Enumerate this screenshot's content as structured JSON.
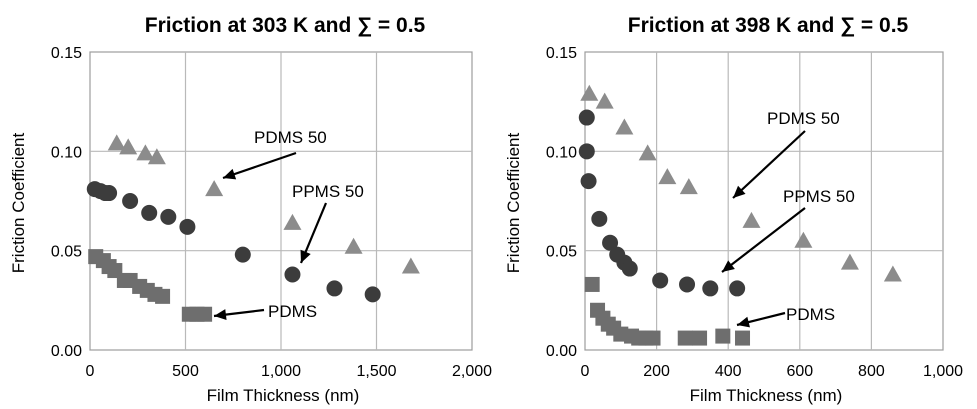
{
  "chart_data": [
    {
      "type": "scatter",
      "title": "Friction at 303 K and ∑ = 0.5",
      "xlabel": "Film Thickness (nm)",
      "ylabel": "Friction Coefficient",
      "xlim": [
        0,
        2000
      ],
      "ylim": [
        0,
        0.15
      ],
      "xticks": [
        "0",
        "500",
        "1,000",
        "1,500",
        "2,000"
      ],
      "yticks": [
        "0.00",
        "0.05",
        "0.10",
        "0.15"
      ],
      "grid": true,
      "series": [
        {
          "name": "PDMS 50",
          "marker": "triangle",
          "color": "#8c8c8c",
          "points": [
            [
              140,
              0.104
            ],
            [
              200,
              0.102
            ],
            [
              290,
              0.099
            ],
            [
              350,
              0.097
            ],
            [
              650,
              0.081
            ],
            [
              1060,
              0.064
            ],
            [
              1380,
              0.052
            ],
            [
              1680,
              0.042
            ]
          ]
        },
        {
          "name": "PPMS 50",
          "marker": "circle",
          "color": "#3c3c3c",
          "points": [
            [
              25,
              0.081
            ],
            [
              55,
              0.08
            ],
            [
              80,
              0.079
            ],
            [
              100,
              0.079
            ],
            [
              210,
              0.075
            ],
            [
              310,
              0.069
            ],
            [
              410,
              0.067
            ],
            [
              510,
              0.062
            ],
            [
              800,
              0.048
            ],
            [
              1060,
              0.038
            ],
            [
              1280,
              0.031
            ],
            [
              1480,
              0.028
            ]
          ]
        },
        {
          "name": "PDMS",
          "marker": "square",
          "color": "#6e6e6e",
          "points": [
            [
              30,
              0.047
            ],
            [
              70,
              0.045
            ],
            [
              100,
              0.042
            ],
            [
              130,
              0.04
            ],
            [
              180,
              0.035
            ],
            [
              210,
              0.035
            ],
            [
              260,
              0.032
            ],
            [
              300,
              0.03
            ],
            [
              340,
              0.028
            ],
            [
              380,
              0.027
            ],
            [
              520,
              0.018
            ],
            [
              560,
              0.018
            ],
            [
              600,
              0.018
            ]
          ]
        }
      ],
      "annotations": [
        {
          "text": "PDMS 50",
          "series": "PDMS 50"
        },
        {
          "text": "PPMS 50",
          "series": "PPMS 50"
        },
        {
          "text": "PDMS",
          "series": "PDMS"
        }
      ]
    },
    {
      "type": "scatter",
      "title": "Friction at 398 K and ∑ = 0.5",
      "xlabel": "Film Thickness (nm)",
      "ylabel": "Friction Coefficient",
      "xlim": [
        0,
        1000
      ],
      "ylim": [
        0,
        0.15
      ],
      "xticks": [
        "0",
        "200",
        "400",
        "600",
        "800",
        "1,000"
      ],
      "yticks": [
        "0.00",
        "0.05",
        "0.10",
        "0.15"
      ],
      "grid": true,
      "series": [
        {
          "name": "PDMS 50",
          "marker": "triangle",
          "color": "#8c8c8c",
          "points": [
            [
              12,
              0.129
            ],
            [
              55,
              0.125
            ],
            [
              110,
              0.112
            ],
            [
              175,
              0.099
            ],
            [
              230,
              0.087
            ],
            [
              290,
              0.082
            ],
            [
              465,
              0.065
            ],
            [
              610,
              0.055
            ],
            [
              740,
              0.044
            ],
            [
              860,
              0.038
            ]
          ]
        },
        {
          "name": "PPMS 50",
          "marker": "circle",
          "color": "#3c3c3c",
          "points": [
            [
              5,
              0.117
            ],
            [
              5,
              0.1
            ],
            [
              10,
              0.085
            ],
            [
              40,
              0.066
            ],
            [
              70,
              0.054
            ],
            [
              90,
              0.048
            ],
            [
              110,
              0.044
            ],
            [
              125,
              0.041
            ],
            [
              210,
              0.035
            ],
            [
              285,
              0.033
            ],
            [
              350,
              0.031
            ],
            [
              425,
              0.031
            ]
          ]
        },
        {
          "name": "PDMS",
          "marker": "square",
          "color": "#6e6e6e",
          "points": [
            [
              20,
              0.033
            ],
            [
              35,
              0.02
            ],
            [
              50,
              0.016
            ],
            [
              65,
              0.013
            ],
            [
              80,
              0.011
            ],
            [
              100,
              0.008
            ],
            [
              130,
              0.007
            ],
            [
              150,
              0.006
            ],
            [
              170,
              0.006
            ],
            [
              190,
              0.006
            ],
            [
              280,
              0.006
            ],
            [
              320,
              0.006
            ],
            [
              385,
              0.007
            ],
            [
              440,
              0.006
            ]
          ]
        }
      ],
      "annotations": [
        {
          "text": "PDMS 50",
          "series": "PDMS 50"
        },
        {
          "text": "PPMS 50",
          "series": "PPMS 50"
        },
        {
          "text": "PDMS",
          "series": "PDMS"
        }
      ]
    }
  ]
}
